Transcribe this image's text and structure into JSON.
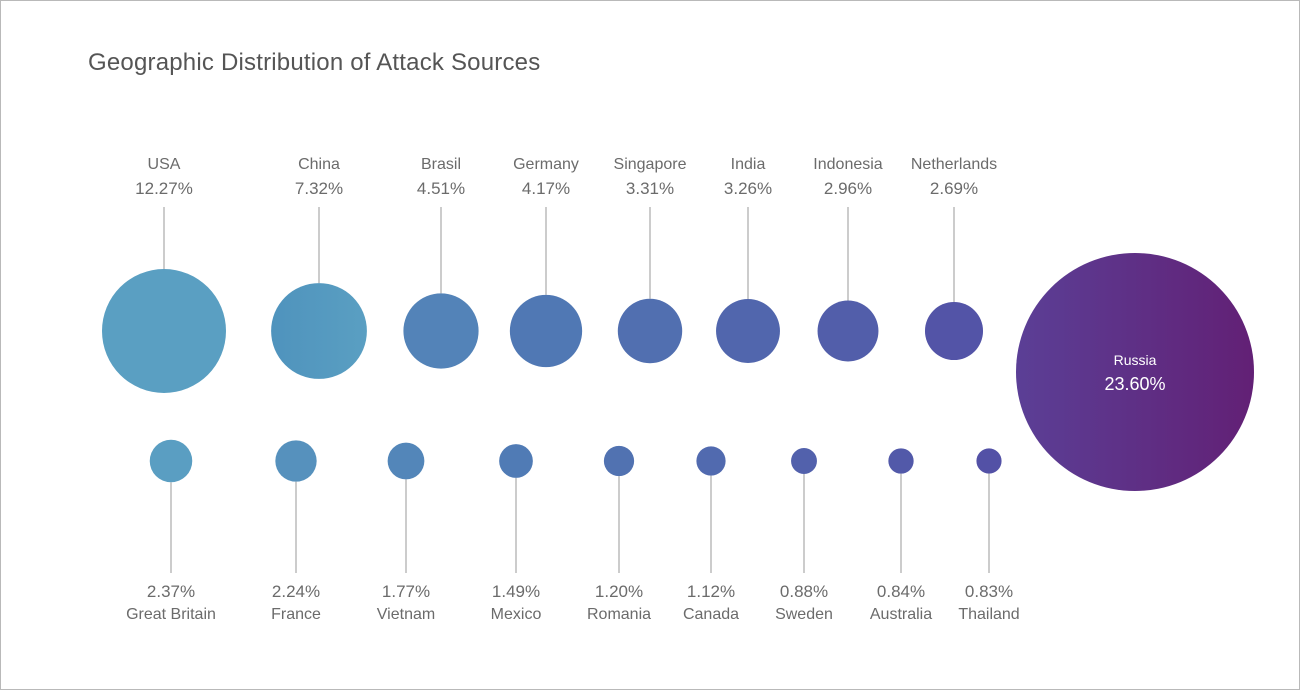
{
  "colors": {
    "light_blue": "#5a9fc2",
    "mid_blue": "#5079b4",
    "indigo": "#5351a6",
    "purple_start": "#5b3f96",
    "purple_end": "#622075",
    "leader_line": "#9a9a9a",
    "label_text": "#6b6b6b"
  },
  "chart_data": {
    "type": "bubble",
    "title": "Geographic Distribution of Attack Sources",
    "unit": "%",
    "rows": {
      "top": [
        {
          "name": "USA",
          "value": 12.27,
          "label": "12.27%"
        },
        {
          "name": "China",
          "value": 7.32,
          "label": "7.32%"
        },
        {
          "name": "Brasil",
          "value": 4.51,
          "label": "4.51%"
        },
        {
          "name": "Germany",
          "value": 4.17,
          "label": "4.17%"
        },
        {
          "name": "Singapore",
          "value": 3.31,
          "label": "3.31%"
        },
        {
          "name": "India",
          "value": 3.26,
          "label": "3.26%"
        },
        {
          "name": "Indonesia",
          "value": 2.96,
          "label": "2.96%"
        },
        {
          "name": "Netherlands",
          "value": 2.69,
          "label": "2.69%"
        }
      ],
      "bottom": [
        {
          "name": "Great Britain",
          "value": 2.37,
          "label": "2.37%"
        },
        {
          "name": "France",
          "value": 2.24,
          "label": "2.24%"
        },
        {
          "name": "Vietnam",
          "value": 1.77,
          "label": "1.77%"
        },
        {
          "name": "Mexico",
          "value": 1.49,
          "label": "1.49%"
        },
        {
          "name": "Romania",
          "value": 1.2,
          "label": "1.20%"
        },
        {
          "name": "Canada",
          "value": 1.12,
          "label": "1.12%"
        },
        {
          "name": "Sweden",
          "value": 0.88,
          "label": "0.88%"
        },
        {
          "name": "Australia",
          "value": 0.84,
          "label": "0.84%"
        },
        {
          "name": "Thailand",
          "value": 0.83,
          "label": "0.83%"
        }
      ],
      "featured": {
        "name": "Russia",
        "value": 23.6,
        "label": "23.60%"
      }
    }
  }
}
